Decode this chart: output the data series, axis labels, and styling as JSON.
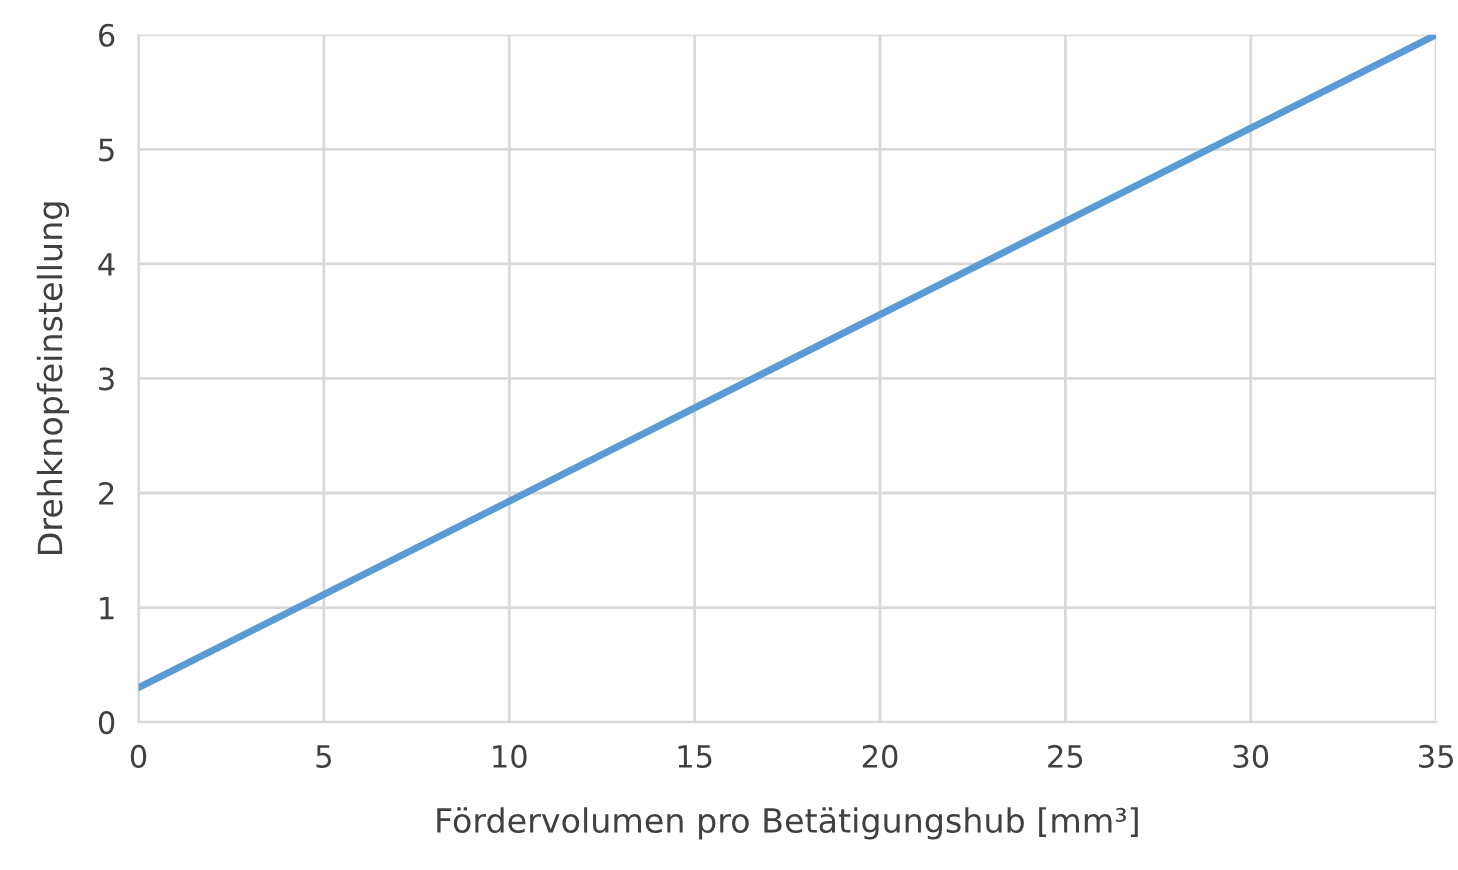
{
  "chart_data": {
    "type": "line",
    "xlabel": "Fördervolumen pro Betätigungshub [mm³]",
    "ylabel": "Drehknopfeinstellung",
    "x": [
      0,
      35
    ],
    "series": [
      {
        "color": "#5b9bd5",
        "values": [
          0.3,
          6.0
        ]
      }
    ],
    "xlim": [
      0,
      35
    ],
    "xticks": [
      0,
      5,
      10,
      15,
      20,
      25,
      30,
      35
    ],
    "ylim": [
      0,
      6
    ],
    "yticks": [
      0,
      1,
      2,
      3,
      4,
      5,
      6
    ],
    "grid": true,
    "marker": "none",
    "line_style": "solid"
  }
}
